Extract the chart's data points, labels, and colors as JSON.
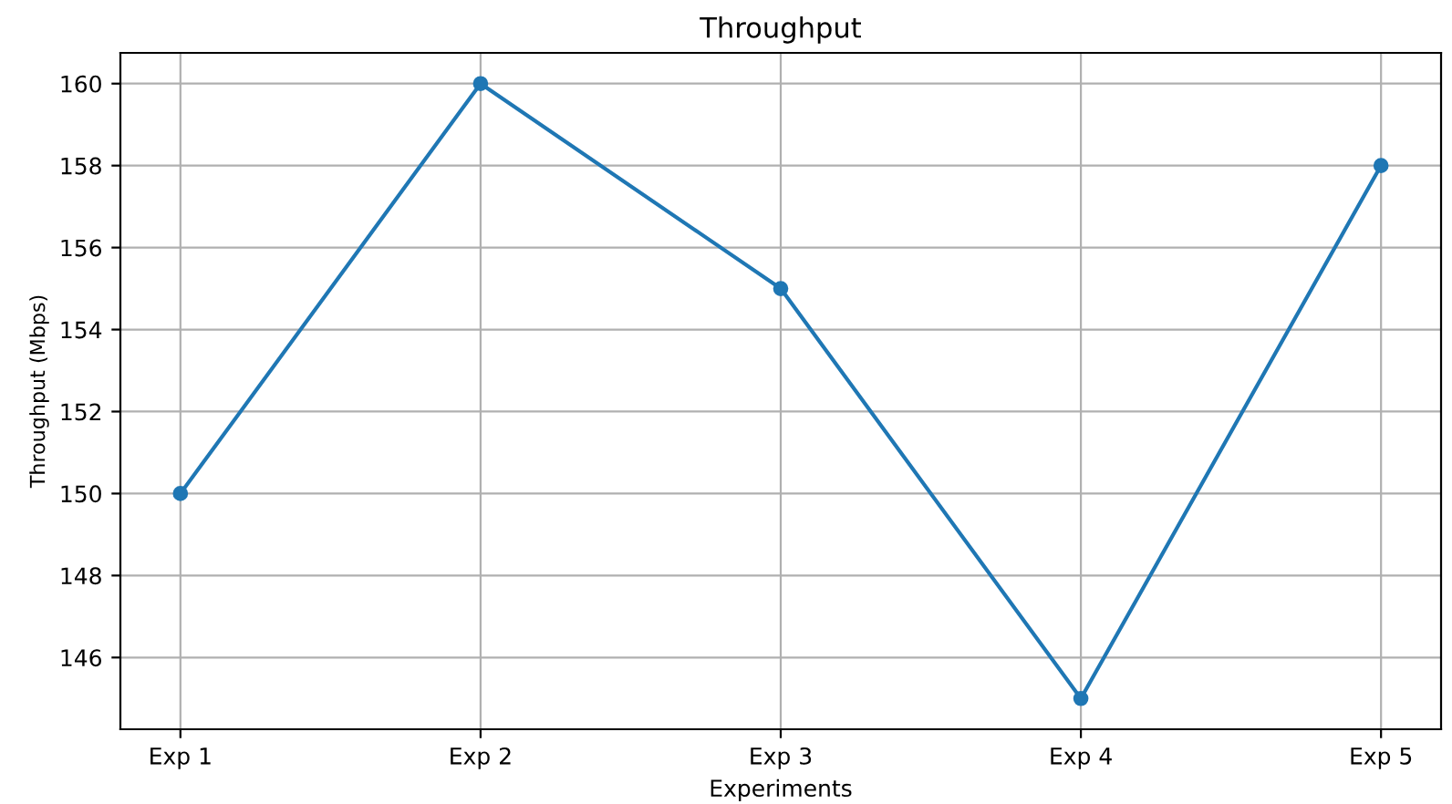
{
  "chart_data": {
    "type": "line",
    "title": "Throughput",
    "xlabel": "Experiments",
    "ylabel": "Throughput (Mbps)",
    "categories": [
      "Exp 1",
      "Exp 2",
      "Exp 3",
      "Exp 4",
      "Exp 5"
    ],
    "series": [
      {
        "color": "#1f77b4",
        "values": [
          150,
          160,
          155,
          145,
          158
        ]
      }
    ],
    "ylim": [
      144.25,
      160.75
    ],
    "yticks": [
      146,
      148,
      150,
      152,
      154,
      156,
      158,
      160
    ],
    "grid": true,
    "marker": "circle",
    "line_style": "solid"
  }
}
